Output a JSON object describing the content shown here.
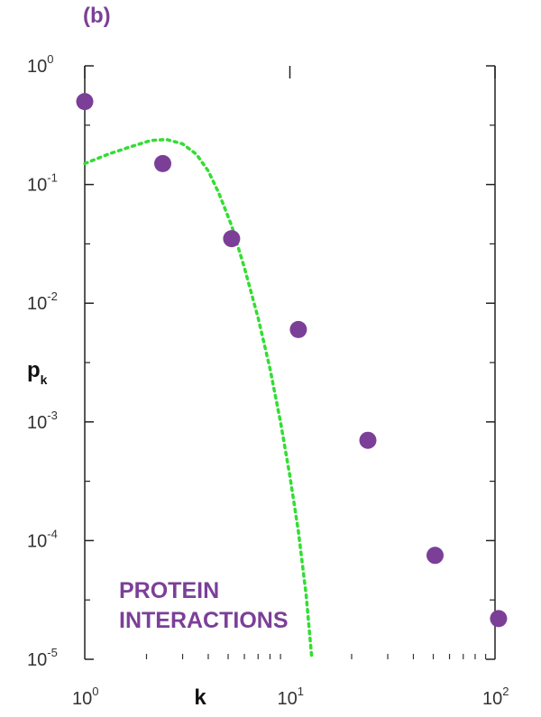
{
  "panel_label": "(b)",
  "chart_data": {
    "type": "scatter",
    "title": "",
    "xlabel": "k",
    "ylabel": "p",
    "ylabel_sub": "k",
    "xscale": "log",
    "yscale": "log",
    "xlim": [
      1,
      100
    ],
    "ylim": [
      1e-05,
      1
    ],
    "x_ticks": [
      {
        "base": "10",
        "exp": "0",
        "value": 1
      },
      {
        "base": "10",
        "exp": "1",
        "value": 10
      },
      {
        "base": "10",
        "exp": "2",
        "value": 100
      }
    ],
    "y_ticks": [
      {
        "base": "10",
        "exp": "0",
        "value": 1
      },
      {
        "base": "10",
        "exp": "-1",
        "value": 0.1
      },
      {
        "base": "10",
        "exp": "-2",
        "value": 0.01
      },
      {
        "base": "10",
        "exp": "-3",
        "value": 0.001
      },
      {
        "base": "10",
        "exp": "-4",
        "value": 0.0001
      },
      {
        "base": "10",
        "exp": "-5",
        "value": 1e-05
      }
    ],
    "grid": false,
    "series": [
      {
        "kind": "scatter",
        "color": "#7b3f98",
        "points": [
          {
            "x": 1,
            "y": 0.5
          },
          {
            "x": 2.4,
            "y": 0.15
          },
          {
            "x": 5.2,
            "y": 0.035
          },
          {
            "x": 11,
            "y": 0.006
          },
          {
            "x": 24,
            "y": 0.0007
          },
          {
            "x": 51,
            "y": 7.5e-05
          },
          {
            "x": 104,
            "y": 2.2e-05
          }
        ]
      },
      {
        "kind": "line",
        "style": "dotted",
        "color": "#33dd33",
        "points": [
          {
            "x": 1,
            "y": 0.15
          },
          {
            "x": 1.3,
            "y": 0.18
          },
          {
            "x": 1.7,
            "y": 0.21
          },
          {
            "x": 2.1,
            "y": 0.235
          },
          {
            "x": 2.5,
            "y": 0.24
          },
          {
            "x": 3.0,
            "y": 0.22
          },
          {
            "x": 3.5,
            "y": 0.18
          },
          {
            "x": 4.0,
            "y": 0.13
          },
          {
            "x": 4.5,
            "y": 0.085
          },
          {
            "x": 5.2,
            "y": 0.045
          },
          {
            "x": 6.0,
            "y": 0.02
          },
          {
            "x": 7.0,
            "y": 0.0075
          },
          {
            "x": 8.0,
            "y": 0.0028
          },
          {
            "x": 9.0,
            "y": 0.001
          },
          {
            "x": 10.0,
            "y": 0.00035
          },
          {
            "x": 11.0,
            "y": 0.00012
          },
          {
            "x": 12.0,
            "y": 3.5e-05
          },
          {
            "x": 12.8,
            "y": 1e-05
          }
        ]
      }
    ],
    "annotations": [
      "PROTEIN",
      "INTERACTIONS"
    ]
  }
}
